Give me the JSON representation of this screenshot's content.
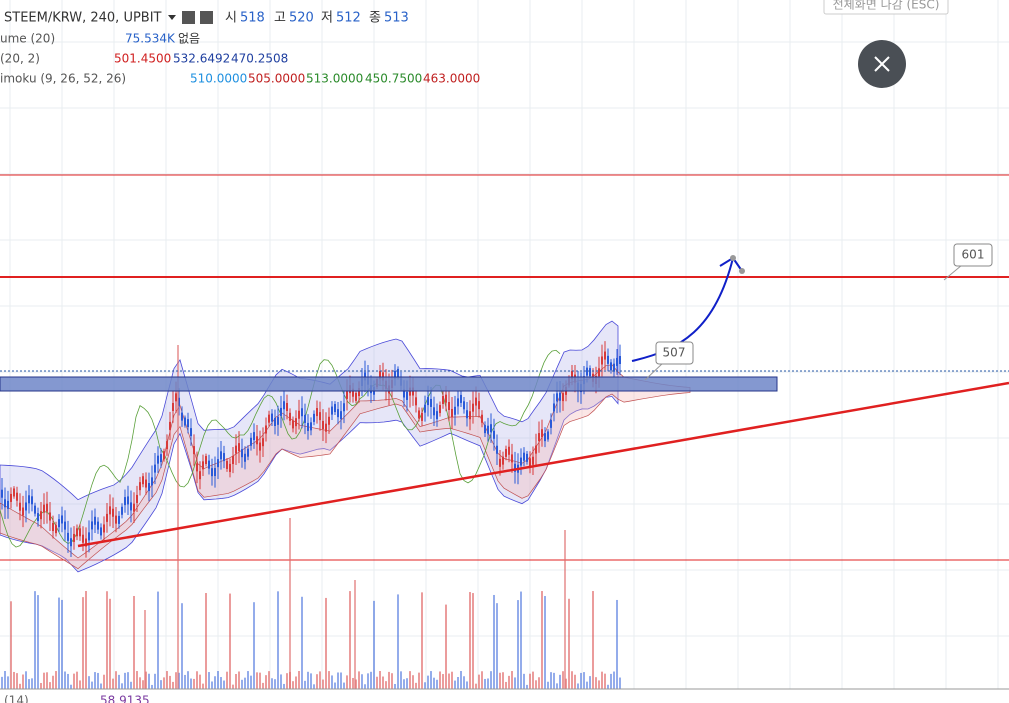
{
  "header": {
    "symbol": "STEEM/KRW, 240, UPBIT",
    "open_label": "시",
    "open": "518",
    "high_label": "고",
    "high": "520",
    "low_label": "저",
    "low": "512",
    "close_label": "종",
    "close": "513"
  },
  "indicators": [
    {
      "name": "ume (20)",
      "values": [
        "75.534K",
        "없음"
      ]
    },
    {
      "name": "(20, 2)",
      "values": [
        "501.4500",
        "532.6492",
        "470.2508"
      ]
    },
    {
      "name": "imoku (9, 26, 52, 26)",
      "values": [
        "510.0000",
        "505.0000",
        "513.0000",
        "450.7500",
        "463.0000"
      ]
    }
  ],
  "exit_fullscreen": "전체화면 나감 (ESC)",
  "callouts": [
    "601",
    "507"
  ],
  "bottom": {
    "name": "(14)",
    "value": "58.9135"
  }
}
